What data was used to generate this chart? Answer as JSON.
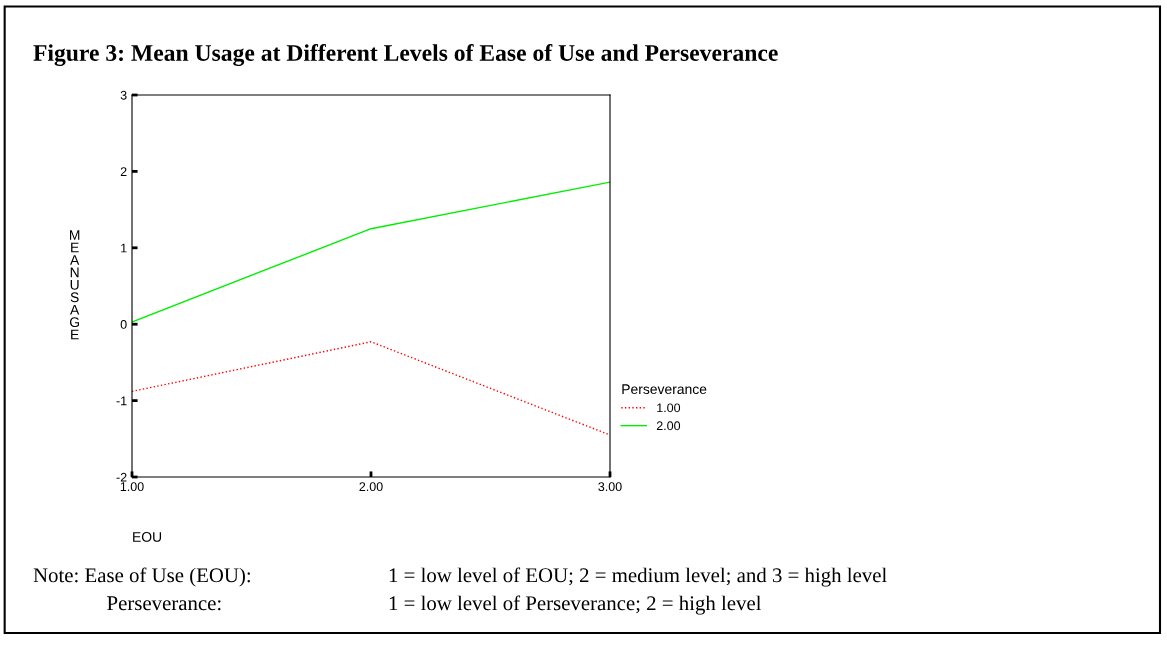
{
  "chart_data": {
    "type": "line",
    "title": "Figure 3: Mean Usage at Different Levels of Ease of Use and Perseverance",
    "xlabel": "EOU",
    "ylabel": "MEAN USAGE",
    "legend_title": "Perseverance",
    "x": [
      1,
      2,
      3
    ],
    "series": [
      {
        "name": "1.00",
        "color": "#ff0000",
        "values": [
          -0.88,
          -0.23,
          -1.45
        ],
        "line_style": "dotted"
      },
      {
        "name": "2.00",
        "color": "#00ee00",
        "values": [
          0.03,
          1.25,
          1.86
        ],
        "line_style": "solid"
      }
    ],
    "xlim": [
      1,
      3
    ],
    "xticks": [
      {
        "value": 1,
        "label": "1.00"
      },
      {
        "value": 2,
        "label": "2.00"
      },
      {
        "value": 3,
        "label": "3.00"
      }
    ],
    "ylim": [
      -2,
      3
    ],
    "yticks": [
      -2,
      -1,
      0,
      1,
      2,
      3
    ],
    "grid": false,
    "legend": "right",
    "annotations": [
      "Note: Ease of Use (EOU):",
      "1 = low level of EOU; 2 = medium level; and 3 = high level",
      "Perseverance:",
      "1 = low level of Perseverance; 2 = high level"
    ]
  }
}
